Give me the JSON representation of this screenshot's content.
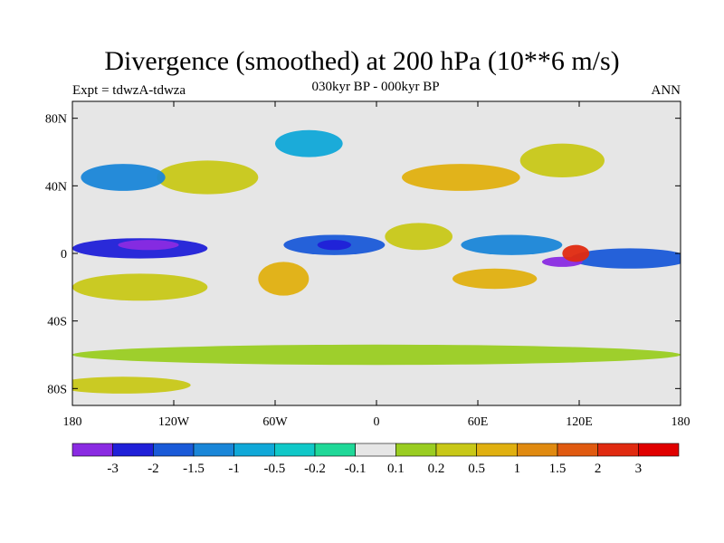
{
  "header": {
    "title": "Divergence (smoothed) at 200 hPa (10**6 m/s)",
    "experiment": "Expt = tdwzA-tdwza",
    "period": "030kyr BP - 000kyr BP",
    "season": "ANN"
  },
  "map": {
    "projection": "cylindrical-equidistant",
    "lat_range": [
      -90,
      90
    ],
    "lon_range": [
      -180,
      180
    ],
    "lat_ticks": [
      {
        "value": 80,
        "label": "80N"
      },
      {
        "value": 40,
        "label": "40N"
      },
      {
        "value": 0,
        "label": "0"
      },
      {
        "value": -40,
        "label": "40S"
      },
      {
        "value": -80,
        "label": "80S"
      }
    ],
    "lon_ticks": [
      {
        "value": -180,
        "label": "180"
      },
      {
        "value": -120,
        "label": "120W"
      },
      {
        "value": -60,
        "label": "60W"
      },
      {
        "value": 0,
        "label": "0"
      },
      {
        "value": 60,
        "label": "60E"
      },
      {
        "value": 120,
        "label": "120E"
      },
      {
        "value": 180,
        "label": "180"
      }
    ],
    "background_color": "#e6e6e6",
    "features": [
      {
        "name": "pacific-equatorial-convergence",
        "lon": -140,
        "lat": 3,
        "rx": 40,
        "ry": 6,
        "level": 1
      },
      {
        "name": "pacific-convergence-core",
        "lon": -135,
        "lat": 5,
        "rx": 18,
        "ry": 3,
        "level": 0
      },
      {
        "name": "atlantic-equatorial-convergence",
        "lon": -25,
        "lat": 5,
        "rx": 30,
        "ry": 6,
        "level": 2
      },
      {
        "name": "atlantic-convergence-core",
        "lon": -25,
        "lat": 5,
        "rx": 10,
        "ry": 3,
        "level": 1
      },
      {
        "name": "indian-ocean-convergence",
        "lon": 80,
        "lat": 5,
        "rx": 30,
        "ry": 6,
        "level": 3
      },
      {
        "name": "maritime-continent-convergence",
        "lon": 150,
        "lat": -3,
        "rx": 35,
        "ry": 6,
        "level": 2
      },
      {
        "name": "maritime-convergence-core",
        "lon": 110,
        "lat": -5,
        "rx": 12,
        "ry": 3,
        "level": 0
      },
      {
        "name": "maritime-divergence",
        "lon": 118,
        "lat": 0,
        "rx": 8,
        "ry": 5,
        "level": 13
      },
      {
        "name": "south-america-divergence",
        "lon": -55,
        "lat": -15,
        "rx": 15,
        "ry": 10,
        "level": 10
      },
      {
        "name": "africa-divergence",
        "lon": 25,
        "lat": 10,
        "rx": 20,
        "ry": 8,
        "level": 9
      },
      {
        "name": "north-america-divergence",
        "lon": -100,
        "lat": 45,
        "rx": 30,
        "ry": 10,
        "level": 9
      },
      {
        "name": "eurasia-divergence",
        "lon": 50,
        "lat": 45,
        "rx": 35,
        "ry": 8,
        "level": 10
      },
      {
        "name": "east-asia-divergence",
        "lon": 110,
        "lat": 55,
        "rx": 25,
        "ry": 10,
        "level": 9
      },
      {
        "name": "north-pacific-convergence",
        "lon": -150,
        "lat": 45,
        "rx": 25,
        "ry": 8,
        "level": 3
      },
      {
        "name": "greenland-convergence",
        "lon": -40,
        "lat": 65,
        "rx": 20,
        "ry": 8,
        "level": 4
      },
      {
        "name": "south-pacific-divergence",
        "lon": -140,
        "lat": -20,
        "rx": 40,
        "ry": 8,
        "level": 9
      },
      {
        "name": "south-indian-divergence",
        "lon": 70,
        "lat": -15,
        "rx": 25,
        "ry": 6,
        "level": 10
      },
      {
        "name": "southern-ocean-band",
        "lon": 0,
        "lat": -60,
        "rx": 180,
        "ry": 6,
        "level": 8
      },
      {
        "name": "antarctic-edge",
        "lon": -150,
        "lat": -78,
        "rx": 40,
        "ry": 5,
        "level": 9
      }
    ]
  },
  "colorbar": {
    "levels": [
      "-3",
      "-2",
      "-1.5",
      "-1",
      "-0.5",
      "-0.2",
      "-0.1",
      "0.1",
      "0.2",
      "0.5",
      "1",
      "1.5",
      "2",
      "3"
    ],
    "colors": [
      "#8a2be2",
      "#2020d8",
      "#1a5ad8",
      "#1a86d8",
      "#10a8d8",
      "#10c8c8",
      "#20d898",
      "#e6e6e6",
      "#9acd22",
      "#c8c818",
      "#e0b010",
      "#e08a10",
      "#e05a10",
      "#e02a10",
      "#e00000"
    ]
  }
}
